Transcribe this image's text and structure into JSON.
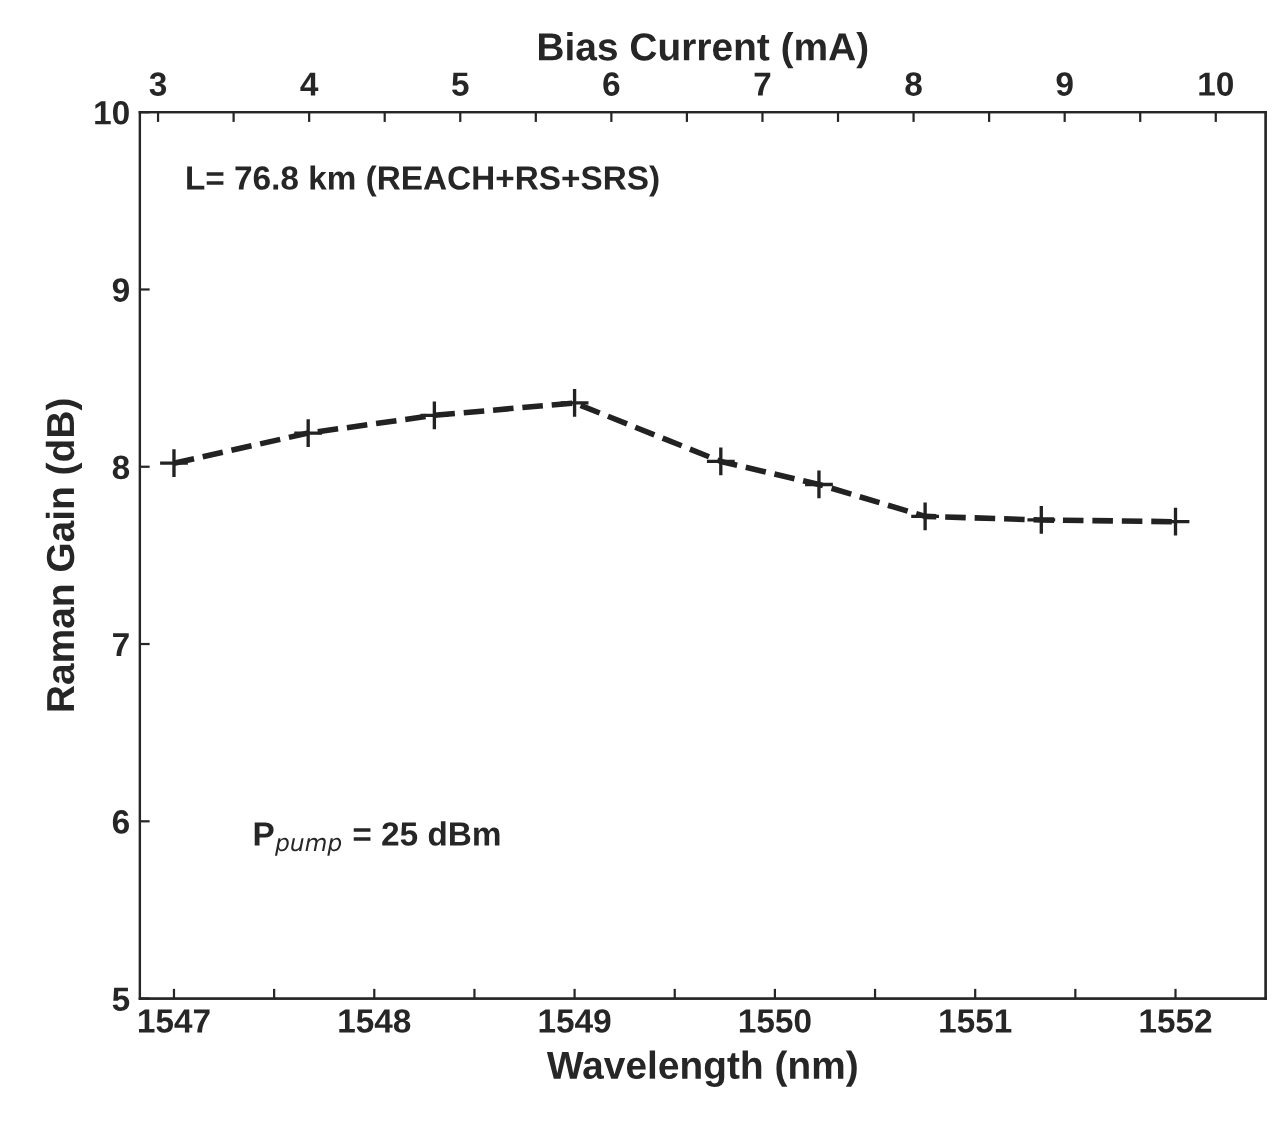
{
  "chart_data": {
    "type": "line",
    "xlabel": "Wavelength (nm)",
    "ylabel": "Raman Gain (dB)",
    "x2label": "Bias Current (mA)",
    "x": [
      1547,
      1547.67,
      1548.3,
      1549,
      1549.73,
      1550.22,
      1550.75,
      1551.33,
      1552
    ],
    "series": [
      {
        "color": "#222222",
        "values": [
          8.02,
          8.19,
          8.29,
          8.36,
          8.03,
          7.9,
          7.72,
          7.7,
          7.69
        ]
      }
    ],
    "xlim": [
      1546.83,
      1552.45
    ],
    "xticks": [
      1547,
      {
        "value": 1547.5,
        "label": null
      },
      1548,
      {
        "value": 1548.5,
        "label": null
      },
      1549,
      {
        "value": 1549.5,
        "label": null
      },
      1550,
      {
        "value": 1550.5,
        "label": null
      },
      1551,
      {
        "value": 1551.5,
        "label": null
      },
      1552
    ],
    "x2lim": [
      2.88,
      10.33
    ],
    "x2ticks": [
      3,
      {
        "value": 3.5,
        "label": null
      },
      4,
      {
        "value": 4.5,
        "label": null
      },
      5,
      {
        "value": 5.5,
        "label": null
      },
      6,
      {
        "value": 6.5,
        "label": null
      },
      7,
      {
        "value": 7.5,
        "label": null
      },
      8,
      {
        "value": 8.5,
        "label": null
      },
      9,
      {
        "value": 9.5,
        "label": null
      },
      10
    ],
    "ylim": [
      5,
      10
    ],
    "yticks": [
      5,
      6,
      7,
      8,
      9,
      10
    ],
    "annotations": [
      "L= 76.8 km (REACH+RS+SRS)",
      "P$_{pump}$ = 25 dBm"
    ],
    "marker": "cross",
    "line_style": "dashed",
    "grid": false,
    "legend": false
  }
}
